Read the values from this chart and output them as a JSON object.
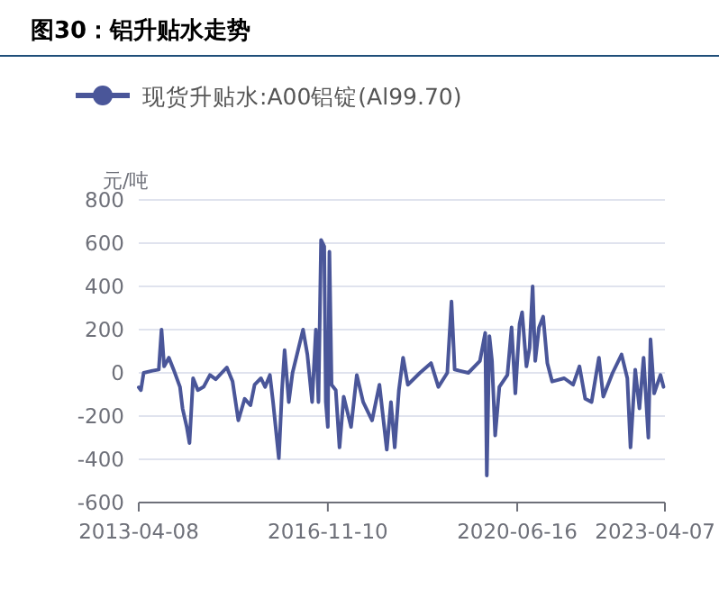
{
  "chart_data": {
    "type": "line",
    "title": "图30：铝升贴水走势",
    "ylabel": "元/吨",
    "x": [
      "2013-04-08",
      "2013-04-23",
      "2013-05-12",
      "2013-07-13",
      "2013-08-25",
      "2013-09-13",
      "2013-10-01",
      "2013-11-03",
      "2013-12-06",
      "2014-01-19",
      "2014-02-06",
      "2014-03-07",
      "2014-03-26",
      "2014-04-20",
      "2014-05-23",
      "2014-07-02",
      "2014-08-15",
      "2014-09-24",
      "2014-12-10",
      "2015-01-19",
      "2015-02-28",
      "2015-04-13",
      "2015-05-23",
      "2015-06-21",
      "2015-08-04",
      "2015-09-02",
      "2015-10-05",
      "2015-10-27",
      "2015-12-06",
      "2015-12-28",
      "2016-01-15",
      "2016-02-13",
      "2016-03-10",
      "2016-05-22",
      "2016-06-21",
      "2016-07-24",
      "2016-08-19",
      "2016-09-06",
      "2016-09-24",
      "2016-10-16",
      "2016-10-27",
      "2016-11-10",
      "2016-11-21",
      "2016-12-06",
      "2017-01-04",
      "2017-01-30",
      "2017-02-28",
      "2017-04-20",
      "2017-05-30",
      "2017-07-13",
      "2017-09-13",
      "2017-11-03",
      "2017-12-24",
      "2018-01-22",
      "2018-02-17",
      "2018-03-18",
      "2018-04-16",
      "2018-05-19",
      "2018-08-11",
      "2018-10-27",
      "2018-12-17",
      "2019-02-17",
      "2019-03-18",
      "2019-04-09",
      "2019-07-13",
      "2019-10-01",
      "2019-11-07",
      "2019-11-18",
      "2019-12-06",
      "2019-12-24",
      "2020-01-15",
      "2020-02-13",
      "2020-04-09",
      "2020-05-08",
      "2020-06-03",
      "2020-07-02",
      "2020-07-20",
      "2020-08-19",
      "2020-09-10",
      "2020-10-01",
      "2020-10-19",
      "2020-11-14",
      "2020-12-13",
      "2021-01-11",
      "2021-02-13",
      "2021-05-08",
      "2021-07-09",
      "2021-08-22",
      "2021-10-01",
      "2021-11-14",
      "2022-01-04",
      "2022-02-03",
      "2022-04-09",
      "2022-06-10",
      "2022-07-20",
      "2022-08-11",
      "2022-09-13",
      "2022-10-12",
      "2022-11-10",
      "2022-12-13",
      "2022-12-28",
      "2023-01-22",
      "2023-03-07",
      "2023-03-28"
    ],
    "series": [
      {
        "name": "现货升贴水:A00铝锭(Al99.70)",
        "color": "#4a5699",
        "values": [
          -67,
          -80,
          0,
          10,
          15,
          200,
          30,
          70,
          15,
          -65,
          -165,
          -250,
          -325,
          -25,
          -80,
          -65,
          -10,
          -30,
          25,
          -40,
          -220,
          -120,
          -150,
          -55,
          -25,
          -65,
          -10,
          -135,
          -395,
          -80,
          105,
          -135,
          0,
          200,
          85,
          -135,
          200,
          -135,
          615,
          585,
          -135,
          -250,
          560,
          -55,
          -80,
          -345,
          -110,
          -250,
          -10,
          -135,
          -220,
          -55,
          -355,
          -135,
          -345,
          -80,
          70,
          -55,
          0,
          45,
          -65,
          0,
          330,
          15,
          0,
          55,
          185,
          -475,
          170,
          55,
          -290,
          -65,
          -10,
          210,
          -95,
          225,
          280,
          30,
          115,
          400,
          55,
          210,
          260,
          45,
          -40,
          -25,
          -55,
          30,
          -120,
          -135,
          70,
          -110,
          0,
          85,
          -25,
          -345,
          15,
          -165,
          70,
          -300,
          155,
          -95,
          -10,
          -65
        ]
      }
    ],
    "xlim": [
      "2013-04-08",
      "2023-04-07"
    ],
    "xticks": [
      "2013-04-08",
      "2016-11-10",
      "2020-06-16",
      "2023-04-07"
    ],
    "ylim": [
      -600,
      800
    ],
    "yticks": [
      -600,
      -400,
      -200,
      0,
      200,
      400,
      600,
      800
    ],
    "grid": "y",
    "legend": "top",
    "marker": "none",
    "line_style": "solid"
  }
}
